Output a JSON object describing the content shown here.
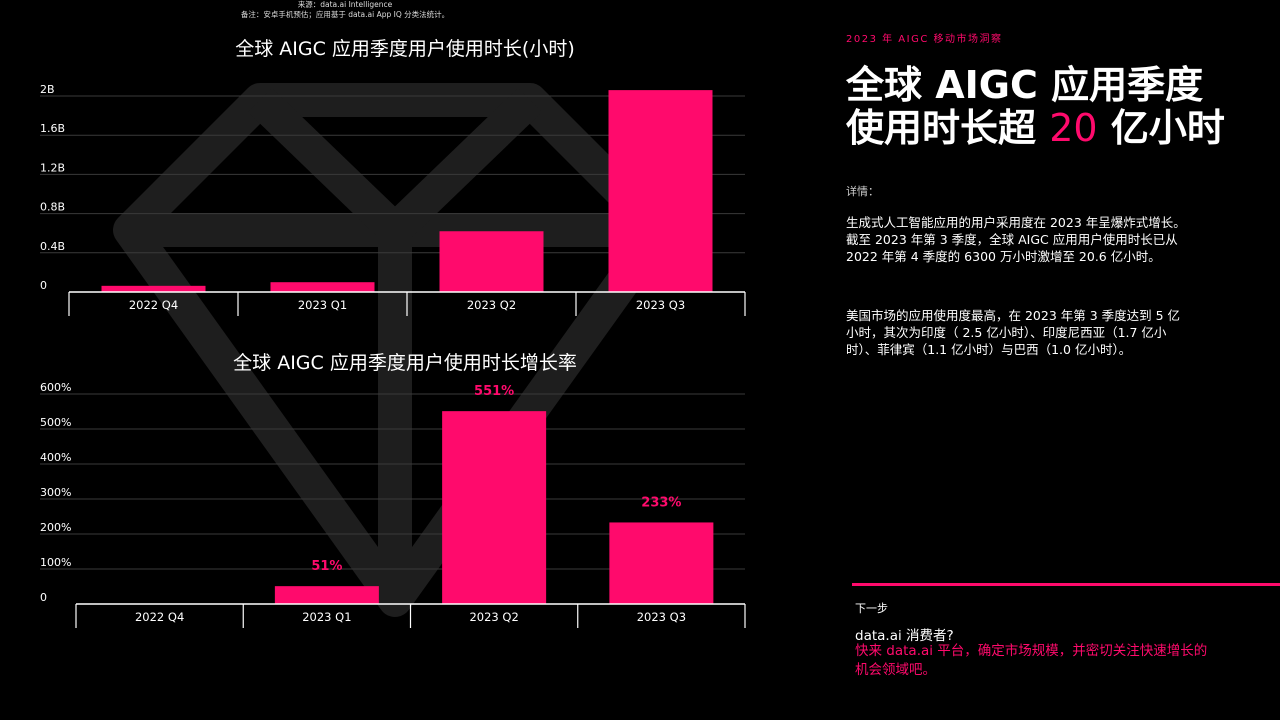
{
  "chart_data": [
    {
      "type": "bar",
      "title": "全球 AIGC 应用季度用户使用时长(小时)",
      "categories": [
        "2022 Q4",
        "2023 Q1",
        "2023 Q2",
        "2023 Q3"
      ],
      "values": [
        0.063,
        0.1,
        0.62,
        2.06
      ],
      "unit": "B",
      "yticks": [
        "0",
        "0.4B",
        "0.8B",
        "1.2B",
        "1.6B",
        "2B"
      ],
      "ylim": [
        0,
        2.0
      ],
      "grid": true,
      "bar_color": "#ff0a6c"
    },
    {
      "type": "bar",
      "title": "全球 AIGC 应用季度用户使用时长增长率",
      "categories": [
        "2022 Q4",
        "2023 Q1",
        "2023 Q2",
        "2023 Q3"
      ],
      "values": [
        null,
        51,
        551,
        233
      ],
      "data_labels": [
        "",
        "51%",
        "551%",
        "233%"
      ],
      "yticks": [
        "0",
        "100%",
        "200%",
        "300%",
        "400%",
        "500%",
        "600%"
      ],
      "ylim": [
        0,
        600
      ],
      "grid": true,
      "bar_color": "#ff0a6c"
    }
  ],
  "sidebar": {
    "tag": "2023 年 AIGC 移动市场洞察",
    "headline_line1": "全球 AIGC 应用季度",
    "headline_line2_pre": "使用时长超 ",
    "headline_highlight": "20",
    "headline_line2_post": " 亿小时",
    "details_label": "详情：",
    "para1": "生成式人工智能应用的用户采用度在 2023 年呈爆炸式增长。截至 2023 年第 3 季度，全球 AIGC 应用用户使用时长已从 2022 年第 4 季度的 6300 万小时激增至 20.6 亿小时。",
    "para2": "美国市场的应用使用度最高，在 2023 年第 3 季度达到 5 亿小时，其次为印度（ 2.5 亿小时）、印度尼西亚（1.7 亿小时）、菲律宾（1.1 亿小时）与巴西（1.0 亿小时）。",
    "next_label": "下一步",
    "next_question": "data.ai 消费者?",
    "next_cta": "快来 data.ai 平台，确定市场规模，并密切关注快速增长的机会领域吧。"
  },
  "footer": {
    "source": "来源：data.ai Intelligence",
    "note": "备注：安卓手机预估；应用基于 data.ai App IQ 分类法统计。"
  },
  "colors": {
    "accent": "#ff0a6c",
    "background": "#000000",
    "watermark": "#1e1e1e"
  }
}
